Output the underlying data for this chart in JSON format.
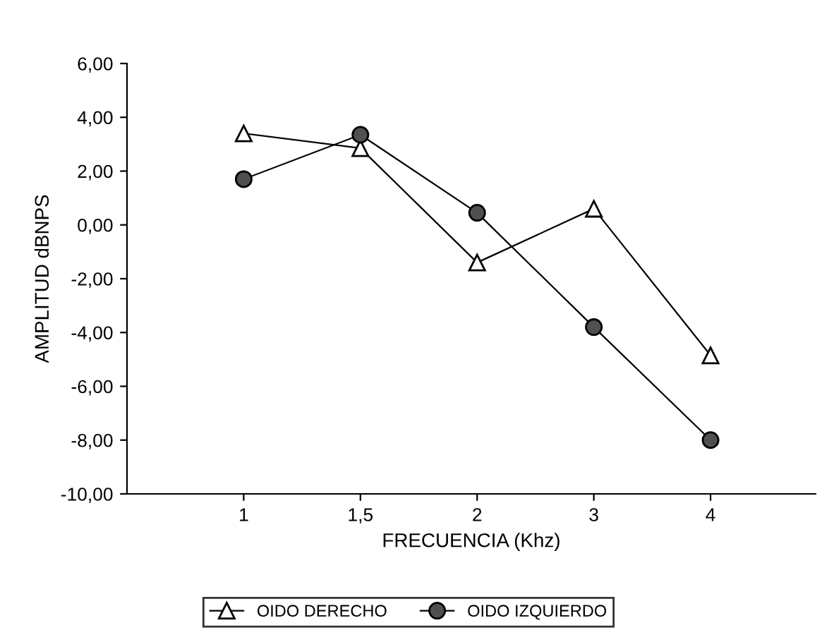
{
  "chart_data": {
    "type": "line",
    "xlabel": "FRECUENCIA (Khz)",
    "ylabel": "AMPLITUD dBNPS",
    "categories": [
      "1",
      "1,5",
      "2",
      "3",
      "4"
    ],
    "series": [
      {
        "name": "OIDO DERECHO",
        "color": "#ffffff",
        "marker": "triangle",
        "values": [
          3.4,
          2.85,
          -1.4,
          0.6,
          -4.85
        ]
      },
      {
        "name": "OIDO IZQUIERDO",
        "color": "#505050",
        "marker": "circle",
        "values": [
          1.7,
          3.35,
          0.45,
          -3.8,
          -8.0
        ]
      }
    ],
    "ylim": [
      -10,
      6
    ],
    "yticks": [
      {
        "value": -10,
        "label": "-10,00"
      },
      {
        "value": -8,
        "label": "-8,00"
      },
      {
        "value": -6,
        "label": "-6,00"
      },
      {
        "value": -4,
        "label": "-4,00"
      },
      {
        "value": -2,
        "label": "-2,00"
      },
      {
        "value": 0,
        "label": "0,00"
      },
      {
        "value": 2,
        "label": "2,00"
      },
      {
        "value": 4,
        "label": "4,00"
      },
      {
        "value": 6,
        "label": "6,00"
      }
    ],
    "grid": false,
    "legend": "bottom",
    "line_style": "solid"
  }
}
